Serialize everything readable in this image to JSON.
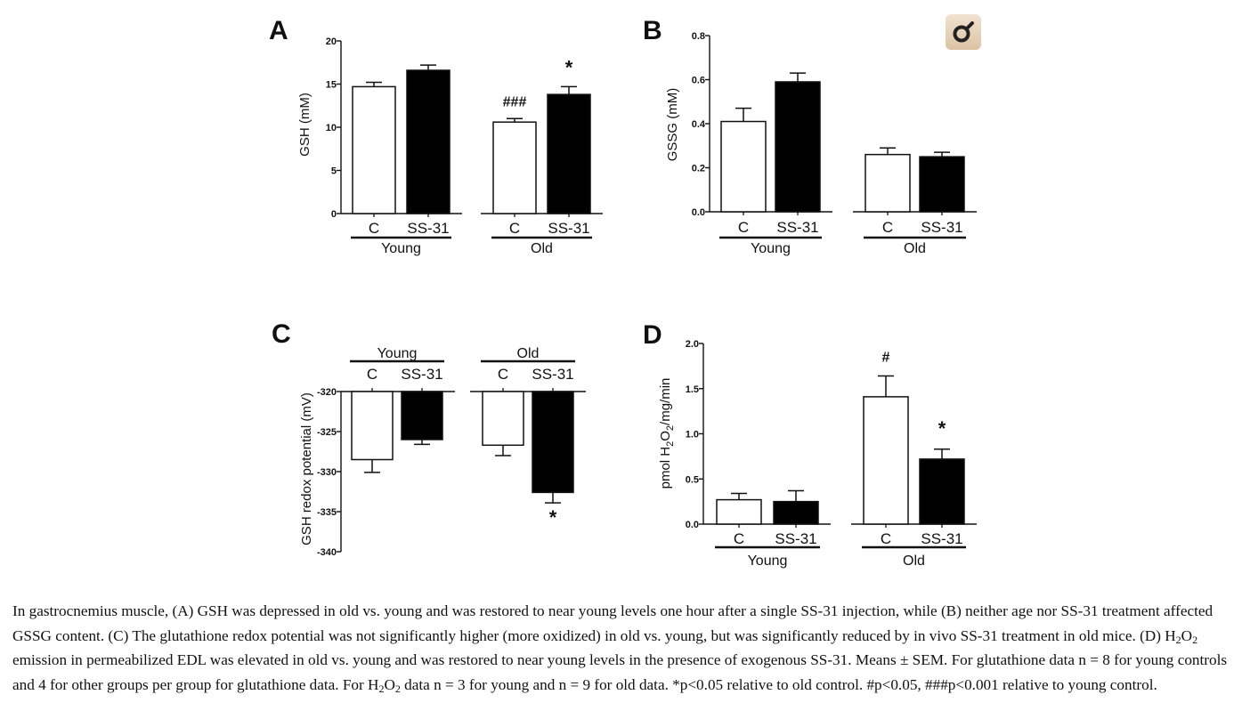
{
  "chart_data": [
    {
      "type": "bar",
      "panel": "A",
      "ylabel": "GSH (mM)",
      "ylim": [
        0,
        20
      ],
      "yticks": [
        0,
        5,
        10,
        15,
        20
      ],
      "tick_labels": [
        "0",
        "5",
        "10",
        "15",
        "20"
      ],
      "groups": [
        "Young",
        "Old"
      ],
      "categories": [
        "C",
        "SS-31",
        "C",
        "SS-31"
      ],
      "values": [
        14.7,
        16.6,
        10.6,
        13.8
      ],
      "errors": [
        0.5,
        0.6,
        0.4,
        0.9
      ],
      "fills": [
        "#ffffff",
        "#000000",
        "#ffffff",
        "#000000"
      ],
      "annotations": [
        {
          "bar": 2,
          "text": "###"
        },
        {
          "bar": 3,
          "text": "*"
        }
      ]
    },
    {
      "type": "bar",
      "panel": "B",
      "ylabel": "GSSG (mM)",
      "ylim": [
        0,
        0.8
      ],
      "yticks": [
        0,
        0.2,
        0.4,
        0.6,
        0.8
      ],
      "tick_labels": [
        "0.0",
        "0.2",
        "0.4",
        "0.6",
        "0.8"
      ],
      "groups": [
        "Young",
        "Old"
      ],
      "categories": [
        "C",
        "SS-31",
        "C",
        "SS-31"
      ],
      "values": [
        0.41,
        0.59,
        0.26,
        0.25
      ],
      "errors": [
        0.06,
        0.04,
        0.03,
        0.02
      ],
      "fills": [
        "#ffffff",
        "#000000",
        "#ffffff",
        "#000000"
      ],
      "annotations": []
    },
    {
      "type": "bar",
      "panel": "C",
      "ylabel": "GSH redox potential (mV)",
      "ylim": [
        -340,
        -320
      ],
      "yticks": [
        -320,
        -325,
        -330,
        -335,
        -340
      ],
      "tick_labels": [
        "-320",
        "-325",
        "-330",
        "-335",
        "-340"
      ],
      "groups": [
        "Young",
        "Old"
      ],
      "categories": [
        "C",
        "SS-31",
        "C",
        "SS-31"
      ],
      "values": [
        -328.5,
        -326.0,
        -326.7,
        -332.6
      ],
      "errors": [
        1.6,
        0.6,
        1.3,
        1.3
      ],
      "fills": [
        "#ffffff",
        "#000000",
        "#ffffff",
        "#000000"
      ],
      "annotations": [
        {
          "bar": 3,
          "text": "*"
        }
      ]
    },
    {
      "type": "bar",
      "panel": "D",
      "ylabel_parts": [
        "pmol H",
        "2",
        "O",
        "2",
        "/mg/min"
      ],
      "ylim": [
        0,
        2.0
      ],
      "yticks": [
        0,
        0.5,
        1.0,
        1.5,
        2.0
      ],
      "tick_labels": [
        "0.0",
        "0.5",
        "1.0",
        "1.5",
        "2.0"
      ],
      "groups": [
        "Young",
        "Old"
      ],
      "categories": [
        "C",
        "SS-31",
        "C",
        "SS-31"
      ],
      "values": [
        0.27,
        0.25,
        1.41,
        0.72
      ],
      "errors": [
        0.07,
        0.12,
        0.23,
        0.11
      ],
      "fills": [
        "#ffffff",
        "#000000",
        "#ffffff",
        "#000000"
      ],
      "annotations": [
        {
          "bar": 2,
          "text": "#"
        },
        {
          "bar": 3,
          "text": "*"
        }
      ]
    }
  ],
  "toolbar": {
    "icon": "magnify-figure-icon"
  },
  "caption": {
    "p1": "In gastrocnemius muscle, (A) GSH was depressed in old vs. young and was restored to near young levels one hour after a single SS-31 injection, while (B) neither age nor SS-31 treatment affected GSSG content. (C) The glutathione redox potential was not significantly higher (more oxidized) in old vs. young, but was significantly reduced by in vivo SS-31 treatment in old mice. (D) H",
    "sub1": "2",
    "p2": "O",
    "sub2": "2",
    "p3": " emission in permeabilized EDL was elevated in old vs. young and was restored to near young levels in the presence of exogenous SS-31. Means ± SEM. For glutathione data n = 8 for young controls and 4 for other groups per group for glutathione data. For H",
    "sub3": "2",
    "p4": "O",
    "sub4": "2",
    "p5": " data n = 3 for young and n = 9 for old data. *p<0.05 relative to old control. #p<0.05, ###p<0.001 relative to young control."
  }
}
